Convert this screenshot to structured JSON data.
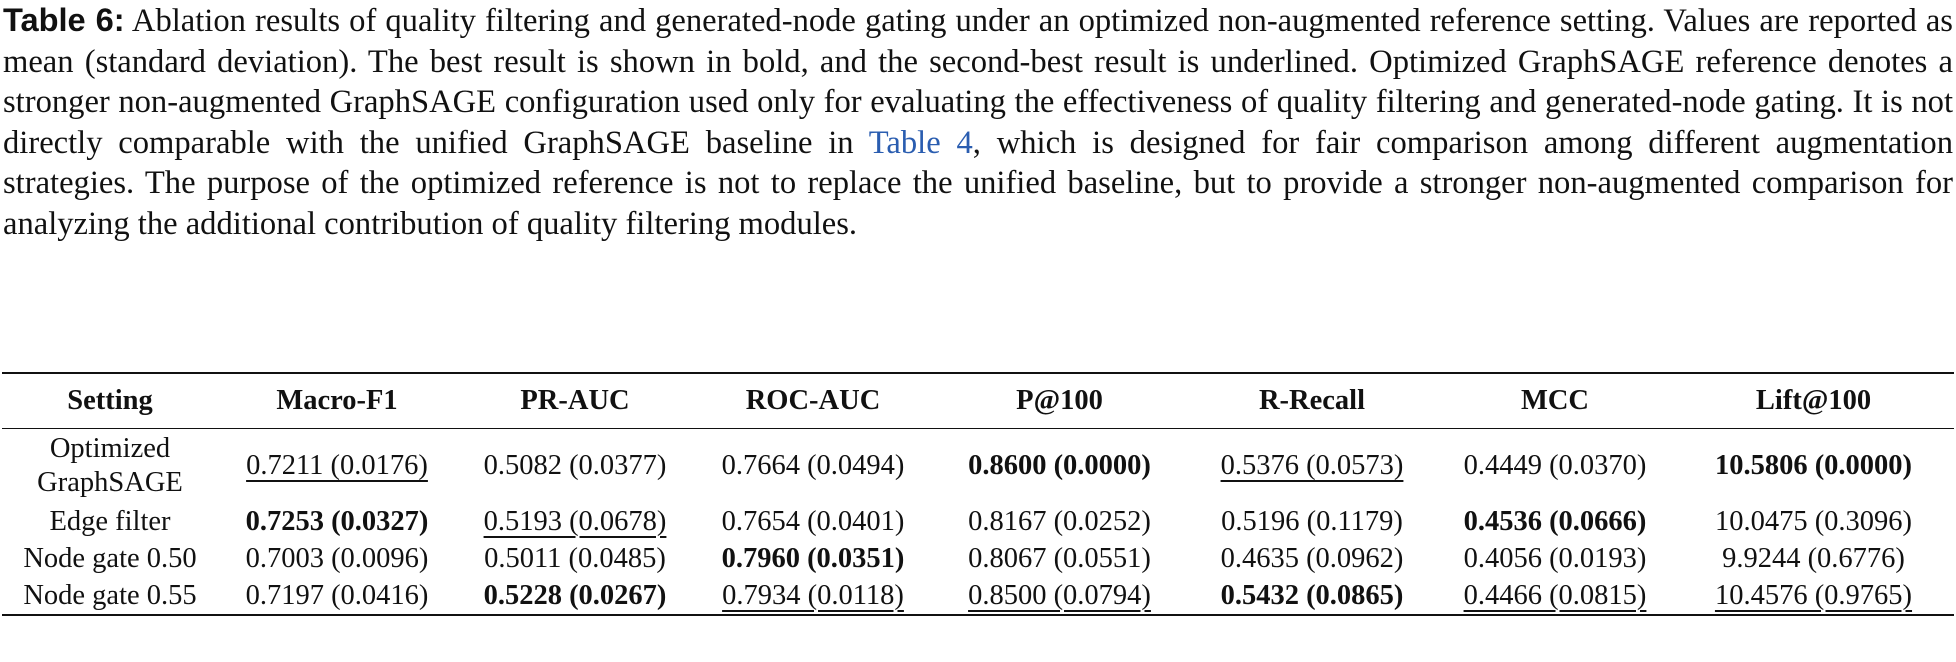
{
  "caption": {
    "label": "Table 6:",
    "text_1": " Ablation results of quality filtering and generated-node gating under an optimized non-augmented reference setting. Values are reported as mean (standard deviation). The best result is shown in bold, and the second-best result is underlined. Optimized GraphSAGE reference denotes a stronger non-augmented GraphSAGE configuration used only for evaluating the effectiveness of quality filtering and generated-node gating. It is not directly comparable with the unified GraphSAGE baseline in ",
    "ref": "Table 4",
    "text_2": ", which is designed for fair comparison among different augmentation strategies. The purpose of the optimized reference is not to replace the unified baseline, but to provide a stronger non-augmented comparison for analyzing the additional contribution of quality filtering modules."
  },
  "table": {
    "headers": [
      "Setting",
      "Macro-F1",
      "PR-AUC",
      "ROC-AUC",
      "P@100",
      "R-Recall",
      "MCC",
      "Lift@100"
    ],
    "rows": [
      {
        "setting": "Optimized GraphSAGE",
        "setting_line1": "Optimized",
        "setting_line2": "GraphSAGE",
        "cells": [
          "0.7211 (0.0176)",
          "0.5082 (0.0377)",
          "0.7664 (0.0494)",
          "0.8600 (0.0000)",
          "0.5376 (0.0573)",
          "0.4449 (0.0370)",
          "10.5806 (0.0000)"
        ],
        "styles": [
          "underline",
          "",
          "",
          "bold",
          "underline",
          "",
          "bold"
        ]
      },
      {
        "setting": "Edge filter",
        "cells": [
          "0.7253 (0.0327)",
          "0.5193 (0.0678)",
          "0.7654 (0.0401)",
          "0.8167 (0.0252)",
          "0.5196 (0.1179)",
          "0.4536 (0.0666)",
          "10.0475 (0.3096)"
        ],
        "styles": [
          "bold",
          "underline",
          "",
          "",
          "",
          "bold",
          ""
        ]
      },
      {
        "setting": "Node gate 0.50",
        "cells": [
          "0.7003 (0.0096)",
          "0.5011 (0.0485)",
          "0.7960 (0.0351)",
          "0.8067 (0.0551)",
          "0.4635 (0.0962)",
          "0.4056 (0.0193)",
          "9.9244 (0.6776)"
        ],
        "styles": [
          "",
          "",
          "bold",
          "",
          "",
          "",
          ""
        ]
      },
      {
        "setting": "Node gate 0.55",
        "cells": [
          "0.7197 (0.0416)",
          "0.5228 (0.0267)",
          "0.7934 (0.0118)",
          "0.8500 (0.0794)",
          "0.5432 (0.0865)",
          "0.4466 (0.0815)",
          "10.4576 (0.9765)"
        ],
        "styles": [
          "",
          "bold",
          "underline",
          "underline",
          "bold",
          "underline",
          "underline"
        ]
      }
    ]
  },
  "colors": {
    "text": "#111111",
    "link": "#2a5db0"
  }
}
